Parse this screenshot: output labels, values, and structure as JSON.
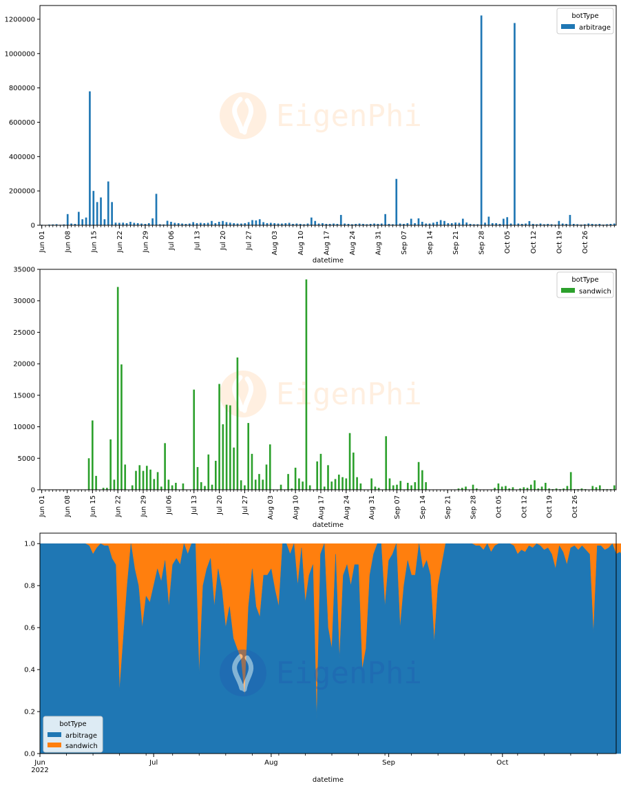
{
  "chart_data": [
    {
      "type": "bar",
      "xlabel": "datetime",
      "ylabel": "",
      "ylim": [
        0,
        1280000
      ],
      "yticks": [
        0,
        200000,
        400000,
        600000,
        800000,
        1000000,
        1200000
      ],
      "ytick_labels": [
        "0",
        "200000",
        "400000",
        "600000",
        "800000",
        "1000000",
        "1200000"
      ],
      "xtick_labels": [
        "Jun 01",
        "Jun 08",
        "Jun 15",
        "Jun 22",
        "Jun 29",
        "Jul 06",
        "Jul 13",
        "Jul 20",
        "Jul 27",
        "Aug 03",
        "Aug 10",
        "Aug 17",
        "Aug 24",
        "Aug 31",
        "Sep 07",
        "Sep 14",
        "Sep 21",
        "Sep 28",
        "Oct 05",
        "Oct 12",
        "Oct 19",
        "Oct 26"
      ],
      "legend": {
        "title": "botType",
        "placement": "top-right"
      },
      "watermark": "EigenPhi",
      "series": [
        {
          "name": "arbitrage",
          "color": "#1f77b4",
          "values": [
            3000,
            2000,
            4000,
            5000,
            6000,
            3000,
            5000,
            65000,
            10000,
            8000,
            78000,
            35000,
            45000,
            780000,
            200000,
            135000,
            162000,
            35000,
            255000,
            135000,
            15000,
            14000,
            15000,
            12000,
            20000,
            14000,
            12000,
            10000,
            8000,
            12000,
            40000,
            183000,
            6000,
            5000,
            26000,
            20000,
            14000,
            12000,
            10000,
            8000,
            10000,
            18000,
            12000,
            14000,
            12000,
            14000,
            25000,
            12000,
            20000,
            25000,
            18000,
            15000,
            12000,
            10000,
            10000,
            12000,
            18000,
            30000,
            28000,
            35000,
            18000,
            12000,
            14000,
            12000,
            10000,
            10000,
            12000,
            14000,
            8000,
            10000,
            8000,
            6000,
            10000,
            45000,
            25000,
            10000,
            12000,
            8000,
            8000,
            10000,
            8000,
            60000,
            10000,
            8000,
            6000,
            8000,
            10000,
            8000,
            6000,
            8000,
            10000,
            8000,
            10000,
            65000,
            8000,
            6000,
            270000,
            10000,
            8000,
            12000,
            38000,
            12000,
            40000,
            20000,
            10000,
            10000,
            15000,
            20000,
            30000,
            25000,
            12000,
            12000,
            16000,
            14000,
            38000,
            16000,
            8000,
            6000,
            6000,
            1222000,
            15000,
            50000,
            12000,
            12000,
            8000,
            38000,
            47000,
            10000,
            1178000,
            10000,
            8000,
            10000,
            24000,
            8000,
            6000,
            10000,
            6000,
            8000,
            6000,
            4000,
            25000,
            10000,
            8000,
            60000,
            8000,
            6000,
            4000,
            6000,
            10000,
            8000,
            6000,
            8000,
            4000,
            6000,
            8000,
            10000
          ]
        }
      ]
    },
    {
      "type": "bar",
      "xlabel": "datetime",
      "ylabel": "",
      "ylim": [
        0,
        35000
      ],
      "yticks": [
        0,
        5000,
        10000,
        15000,
        20000,
        25000,
        30000,
        35000
      ],
      "ytick_labels": [
        "0",
        "5000",
        "10000",
        "15000",
        "20000",
        "25000",
        "30000",
        "35000"
      ],
      "xtick_labels": [
        "Jun 01",
        "Jun 08",
        "Jun 15",
        "Jun 22",
        "Jun 29",
        "Jul 06",
        "Jul 13",
        "Jul 20",
        "Jul 27",
        "Aug 03",
        "Aug 10",
        "Aug 17",
        "Aug 24",
        "Aug 31",
        "Sep 07",
        "Sep 14",
        "Sep 21",
        "Sep 28",
        "Oct 05",
        "Oct 12",
        "Oct 19",
        "Oct 26"
      ],
      "legend": {
        "title": "botType",
        "placement": "top-right"
      },
      "watermark": "EigenPhi",
      "series": [
        {
          "name": "sandwich",
          "color": "#2ca02c",
          "values": [
            0,
            0,
            0,
            0,
            0,
            0,
            0,
            0,
            0,
            0,
            0,
            0,
            0,
            5000,
            11000,
            2200,
            0,
            300,
            300,
            8000,
            1600,
            32200,
            19900,
            4000,
            0,
            700,
            3000,
            3900,
            3000,
            3800,
            3200,
            1700,
            2800,
            500,
            7400,
            1600,
            700,
            1100,
            0,
            1000,
            0,
            0,
            15900,
            3600,
            1200,
            600,
            5600,
            800,
            4600,
            16800,
            10400,
            13500,
            13400,
            6700,
            21000,
            1500,
            700,
            10600,
            5700,
            1600,
            2500,
            1600,
            4000,
            7200,
            0,
            0,
            800,
            0,
            2500,
            200,
            3500,
            1800,
            1300,
            33400,
            700,
            0,
            4500,
            5700,
            500,
            3900,
            1300,
            1700,
            2400,
            2000,
            1800,
            9000,
            5900,
            2000,
            1000,
            0,
            0,
            1800,
            500,
            300,
            0,
            8500,
            1800,
            700,
            800,
            1400,
            0,
            1100,
            700,
            1200,
            4400,
            3100,
            1200,
            0,
            0,
            0,
            0,
            0,
            0,
            0,
            0,
            200,
            300,
            500,
            0,
            800,
            200,
            0,
            0,
            0,
            0,
            300,
            1000,
            500,
            600,
            200,
            400,
            0,
            200,
            400,
            300,
            800,
            1500,
            200,
            500,
            1100,
            200,
            100,
            200,
            100,
            200,
            600,
            2800,
            100,
            100,
            200,
            100,
            0,
            600,
            400,
            700,
            100,
            100,
            100,
            700
          ]
        }
      ]
    },
    {
      "type": "area",
      "stacked": true,
      "xlabel": "datetime",
      "ylabel": "",
      "ylim": [
        0,
        1.05
      ],
      "yticks": [
        0,
        0.2,
        0.4,
        0.6,
        0.8,
        1.0
      ],
      "ytick_labels": [
        "0.0",
        "0.2",
        "0.4",
        "0.6",
        "0.8",
        "1.0"
      ],
      "xtick_labels": [
        "Jun\n2022",
        "Jul",
        "Aug",
        "Sep",
        "Oct"
      ],
      "xtick_dates": [
        "2022-06-01",
        "2022-07-01",
        "2022-08-01",
        "2022-09-01",
        "2022-10-01"
      ],
      "x_end": "2022-10-31",
      "legend": {
        "title": "botType",
        "placement": "bottom-left"
      },
      "watermark": "EigenPhi",
      "series": [
        {
          "name": "arbitrage",
          "color": "#1f77b4",
          "values": [
            1,
            1,
            1,
            1,
            1,
            1,
            1,
            1,
            1,
            1,
            1,
            1,
            1,
            0.99,
            0.95,
            0.98,
            1,
            0.99,
            0.99,
            0.93,
            0.9,
            0.3,
            0.55,
            0.8,
            1,
            0.88,
            0.8,
            0.6,
            0.75,
            0.72,
            0.8,
            0.88,
            0.82,
            0.92,
            0.7,
            0.9,
            0.93,
            0.9,
            1,
            0.95,
            1,
            1,
            0.38,
            0.8,
            0.88,
            0.93,
            0.7,
            0.88,
            0.78,
            0.6,
            0.7,
            0.55,
            0.5,
            0.45,
            0.27,
            0.7,
            0.88,
            0.7,
            0.65,
            0.85,
            0.85,
            0.88,
            0.78,
            0.7,
            1,
            1,
            0.95,
            1,
            0.8,
            0.98,
            0.72,
            0.85,
            0.9,
            0.16,
            0.95,
            1,
            0.6,
            0.5,
            0.95,
            0.45,
            0.85,
            0.9,
            0.8,
            0.9,
            0.9,
            0.4,
            0.5,
            0.85,
            0.95,
            1,
            1,
            0.7,
            0.92,
            0.95,
            1,
            0.6,
            0.8,
            0.92,
            0.85,
            0.85,
            1,
            0.88,
            0.92,
            0.85,
            0.53,
            0.8,
            0.9,
            1,
            1,
            1,
            1,
            1,
            1,
            1,
            1,
            0.99,
            0.99,
            0.97,
            1,
            0.96,
            0.99,
            1,
            1,
            1,
            1,
            0.99,
            0.95,
            0.97,
            0.96,
            0.99,
            0.98,
            1,
            0.99,
            0.97,
            0.98,
            0.95,
            0.88,
            0.99,
            0.96,
            0.9,
            0.98,
            0.99,
            0.97,
            0.99,
            0.97,
            0.95,
            0.57,
            0.99,
            0.99,
            0.97,
            0.98,
            1,
            0.95,
            0.96,
            0.93,
            0.99,
            0.99,
            0.98,
            0.91
          ]
        },
        {
          "name": "sandwich",
          "color": "#ff7f0e",
          "values": []
        }
      ]
    }
  ]
}
